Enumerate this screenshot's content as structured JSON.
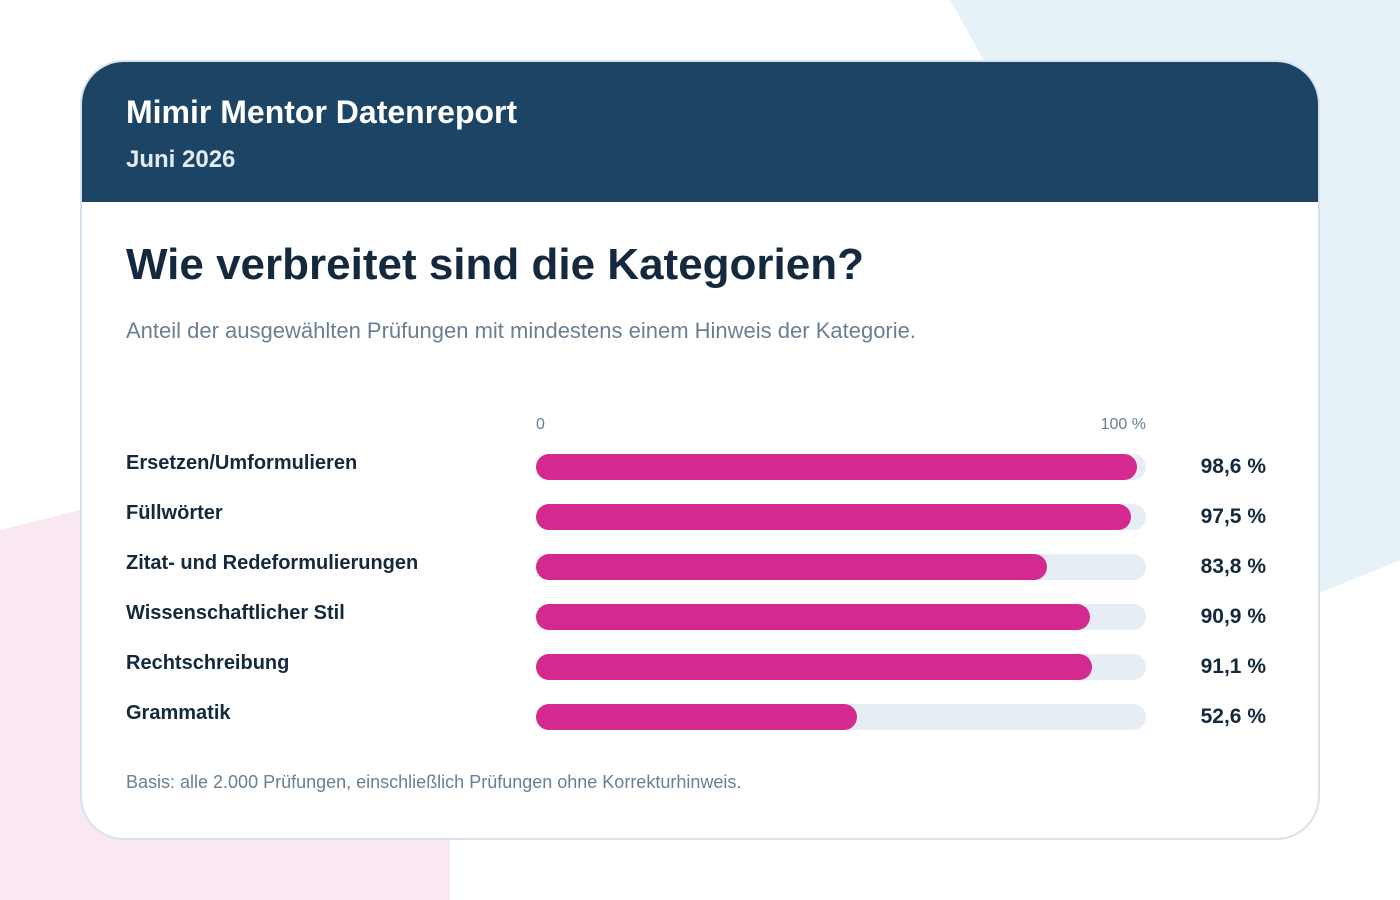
{
  "header": {
    "brand": "Mimir Mentor Datenreport",
    "period": "Juni 2026"
  },
  "colors": {
    "header_bg": "#1c4565",
    "bar": "#d42a8f",
    "track": "#e6edf4",
    "text": "#14293d"
  },
  "chart_data": {
    "type": "bar",
    "orientation": "horizontal",
    "title": "Wie verbreitet sind die Kategorien?",
    "subtitle": "Anteil der ausgewählten Prüfungen mit mindestens einem Hinweis der Kategorie.",
    "axis": {
      "min_label": "0",
      "max_label": "100 %"
    },
    "xlim": [
      0,
      100
    ],
    "unit": "%",
    "grid": false,
    "legend": "none",
    "categories": [
      "Ersetzen/Umformulieren",
      "Füllwörter",
      "Zitat- und Redeformulierungen",
      "Wissenschaftlicher Stil",
      "Rechtschreibung",
      "Grammatik"
    ],
    "values": [
      98.6,
      97.5,
      83.8,
      90.9,
      91.1,
      52.6
    ],
    "value_labels": [
      "98,6 %",
      "97,5 %",
      "83,8 %",
      "90,9 %",
      "91,1 %",
      "52,6 %"
    ],
    "footnote": "Basis: alle 2.000 Prüfungen, einschließlich Prüfungen ohne Korrekturhinweis."
  }
}
